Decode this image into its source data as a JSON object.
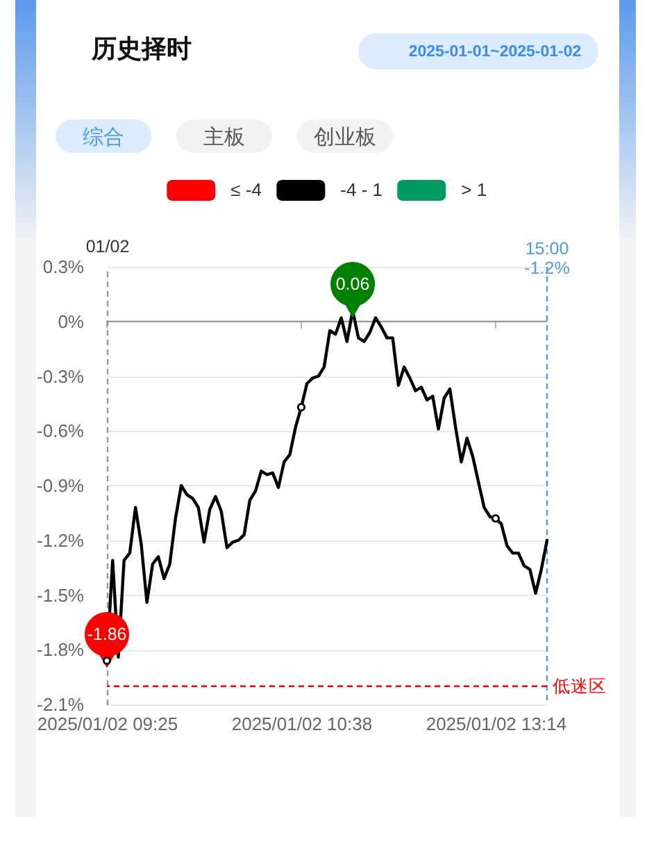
{
  "chart_data": {
    "type": "line",
    "title": "历史择时",
    "annotations": [
      "2025-01-01~2025-01-02",
      "综合",
      "主板",
      "创业板"
    ],
    "categories": [
      "2025/01/02 09:25",
      null,
      null,
      null,
      null,
      null,
      null,
      null,
      null,
      null,
      null,
      null,
      null,
      null,
      null,
      null,
      null,
      null,
      null,
      null,
      null,
      null,
      null,
      null,
      null,
      null,
      null,
      null,
      null,
      null,
      null,
      null,
      null,
      null,
      "2025/01/02 10:38",
      null,
      null,
      null,
      null,
      null,
      null,
      null,
      null,
      null,
      null,
      null,
      null,
      null,
      null,
      null,
      null,
      null,
      null,
      null,
      null,
      null,
      null,
      null,
      null,
      null,
      null,
      null,
      null,
      null,
      null,
      null,
      null,
      null,
      "2025/01/02 13:14",
      null,
      null,
      null,
      null,
      null,
      null,
      null,
      null,
      "15:00"
    ],
    "ylabel": "01/02",
    "ylim": [
      -2.1,
      0.3
    ],
    "yticks": [
      {
        "value": 0.3,
        "label": "0.3%"
      },
      {
        "value": 0,
        "label": "0%"
      },
      {
        "value": -0.3,
        "label": "-0.3%"
      },
      {
        "value": -0.6,
        "label": "-0.6%"
      },
      {
        "value": -0.9,
        "label": "-0.9%"
      },
      {
        "value": -1.2,
        "label": "-1.2%"
      },
      {
        "value": -1.5,
        "label": "-1.5%"
      },
      {
        "value": -1.8,
        "label": "-1.8%"
      },
      {
        "value": -2.1,
        "label": "-2.1%"
      }
    ],
    "grid": "y",
    "legend": "top",
    "series": [
      {
        "name": "≤ -4",
        "color": "#ff0000",
        "values": [
          null,
          null,
          null,
          null,
          null,
          null,
          null,
          null,
          null,
          null,
          null,
          null,
          null,
          null,
          null,
          null,
          null,
          null,
          null,
          null,
          null,
          null,
          null,
          null,
          null,
          null,
          null,
          null,
          null,
          null,
          null,
          null,
          null,
          null,
          null,
          null,
          null,
          null,
          null,
          null,
          null,
          null,
          null,
          null,
          null,
          null,
          null,
          null,
          null,
          null,
          null,
          null,
          null,
          null,
          null,
          null,
          null,
          null,
          null,
          null,
          null,
          null,
          null,
          null,
          null,
          null,
          null,
          null,
          null,
          null,
          null,
          null,
          null,
          null,
          null,
          null,
          null,
          null
        ]
      },
      {
        "name": "-4 - 1",
        "color": "#000000",
        "values": [
          -1.86,
          -1.31,
          -1.84,
          -1.31,
          -1.27,
          -1.02,
          -1.22,
          -1.54,
          -1.33,
          -1.29,
          -1.41,
          -1.33,
          -1.08,
          -0.9,
          -0.95,
          -0.97,
          -1.02,
          -1.21,
          -1.03,
          -0.96,
          -1.04,
          -1.24,
          -1.21,
          -1.2,
          -1.17,
          -0.98,
          -0.93,
          -0.82,
          -0.84,
          -0.83,
          -0.91,
          -0.77,
          -0.73,
          -0.58,
          -0.47,
          -0.34,
          -0.31,
          -0.3,
          -0.25,
          -0.05,
          -0.07,
          0.02,
          -0.11,
          0.06,
          -0.09,
          -0.11,
          -0.06,
          0.02,
          -0.03,
          -0.09,
          -0.09,
          -0.35,
          -0.25,
          -0.31,
          -0.38,
          -0.36,
          -0.43,
          -0.41,
          -0.59,
          -0.42,
          -0.37,
          -0.58,
          -0.77,
          -0.64,
          -0.74,
          -0.88,
          -1.02,
          -1.07,
          -1.08,
          -1.11,
          -1.23,
          -1.27,
          -1.27,
          -1.34,
          -1.36,
          -1.49,
          -1.36,
          -1.2
        ]
      },
      {
        "name": "> 1",
        "color": "#009b63",
        "values": [
          null,
          null,
          null,
          null,
          null,
          null,
          null,
          null,
          null,
          null,
          null,
          null,
          null,
          null,
          null,
          null,
          null,
          null,
          null,
          null,
          null,
          null,
          null,
          null,
          null,
          null,
          null,
          null,
          null,
          null,
          null,
          null,
          null,
          null,
          null,
          null,
          null,
          null,
          null,
          null,
          null,
          null,
          null,
          null,
          null,
          null,
          null,
          null,
          null,
          null,
          null,
          null,
          null,
          null,
          null,
          null,
          null,
          null,
          null,
          null,
          null,
          null,
          null,
          null,
          null,
          null,
          null,
          null,
          null,
          null,
          null,
          null,
          null,
          null,
          null,
          null,
          null,
          null
        ]
      },
      {
        "type": "scatter",
        "color": "#000000",
        "marker": "circle",
        "values": [
          -1.86,
          null,
          null,
          null,
          null,
          null,
          null,
          null,
          null,
          null,
          null,
          null,
          null,
          null,
          null,
          null,
          null,
          null,
          null,
          null,
          null,
          null,
          null,
          null,
          null,
          null,
          null,
          null,
          null,
          null,
          null,
          null,
          null,
          null,
          -0.47,
          null,
          null,
          null,
          null,
          null,
          null,
          null,
          null,
          null,
          null,
          null,
          null,
          null,
          null,
          null,
          null,
          null,
          null,
          null,
          null,
          null,
          null,
          null,
          null,
          null,
          null,
          null,
          null,
          null,
          null,
          null,
          null,
          null,
          -1.08,
          null,
          null,
          null,
          null,
          null,
          null,
          null,
          null,
          null
        ]
      },
      {
        "type": "scatter",
        "color": "#ff0000",
        "marker": "triangle",
        "values": [
          -1.86,
          null,
          null,
          null,
          null,
          null,
          null,
          null,
          null,
          null,
          null,
          null,
          null,
          null,
          null,
          null,
          null,
          null,
          null,
          null,
          null,
          null,
          null,
          null,
          null,
          null,
          null,
          null,
          null,
          null,
          null,
          null,
          null,
          null,
          null,
          null,
          null,
          null,
          null,
          null,
          null,
          null,
          null,
          null,
          null,
          null,
          null,
          null,
          null,
          null,
          null,
          null,
          null,
          null,
          null,
          null,
          null,
          null,
          null,
          null,
          null,
          null,
          null,
          null,
          null,
          null,
          null,
          null,
          null,
          null,
          null,
          null,
          null,
          null,
          null,
          null,
          null,
          null
        ],
        "value_labels": [
          "-1.86",
          null,
          null,
          null,
          null,
          null,
          null,
          null,
          null,
          null,
          null,
          null,
          null,
          null,
          null,
          null,
          null,
          null,
          null,
          null,
          null,
          null,
          null,
          null,
          null,
          null,
          null,
          null,
          null,
          null,
          null,
          null,
          null,
          null,
          null,
          null,
          null,
          null,
          null,
          null,
          null,
          null,
          null,
          null,
          null,
          null,
          null,
          null,
          null,
          null,
          null,
          null,
          null,
          null,
          null,
          null,
          null,
          null,
          null,
          null,
          null,
          null,
          null,
          null,
          null,
          null,
          null,
          null,
          null,
          null,
          null,
          null,
          null,
          null,
          null,
          null,
          null,
          null
        ]
      },
      {
        "type": "scatter",
        "color": "#008000",
        "marker": "triangle",
        "values": [
          null,
          null,
          null,
          null,
          null,
          null,
          null,
          null,
          null,
          null,
          null,
          null,
          null,
          null,
          null,
          null,
          null,
          null,
          null,
          null,
          null,
          null,
          null,
          null,
          null,
          null,
          null,
          null,
          null,
          null,
          null,
          null,
          null,
          null,
          null,
          null,
          null,
          null,
          null,
          null,
          null,
          null,
          null,
          0.06,
          null,
          null,
          null,
          null,
          null,
          null,
          null,
          null,
          null,
          null,
          null,
          null,
          null,
          null,
          null,
          null,
          null,
          null,
          null,
          null,
          null,
          null,
          null,
          null,
          null,
          null,
          null,
          null,
          null,
          null,
          null,
          null,
          null,
          null
        ],
        "value_labels": [
          null,
          null,
          null,
          null,
          null,
          null,
          null,
          null,
          null,
          null,
          null,
          null,
          null,
          null,
          null,
          null,
          null,
          null,
          null,
          null,
          null,
          null,
          null,
          null,
          null,
          null,
          null,
          null,
          null,
          null,
          null,
          null,
          null,
          null,
          null,
          null,
          null,
          null,
          null,
          null,
          null,
          null,
          null,
          "0.06",
          null,
          null,
          null,
          null,
          null,
          null,
          null,
          null,
          null,
          null,
          null,
          null,
          null,
          null,
          null,
          null,
          null,
          null,
          null,
          null,
          null,
          null,
          null,
          null,
          null,
          null,
          null,
          null,
          null,
          null,
          null,
          null,
          null,
          null
        ]
      }
    ],
    "ref_lines": [
      {
        "axis": "x",
        "value": "15:00",
        "label": "-1.2%",
        "color": "#4a9af5",
        "line_style": "dashed"
      },
      {
        "axis": "y",
        "value": -2.0,
        "label": "低迷区",
        "color": "#ff0000",
        "line_style": "dashed"
      }
    ]
  }
}
